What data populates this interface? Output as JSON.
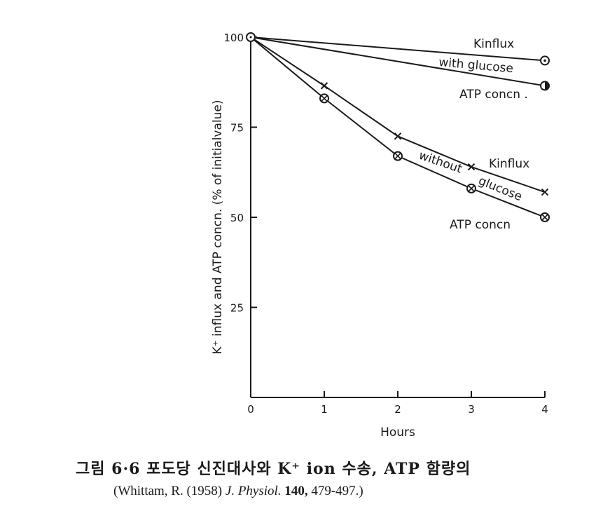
{
  "chart_data": {
    "type": "line",
    "xlabel": "Hours",
    "ylabel": "K⁺ influx and ATP concn. (% of initialvalue)",
    "x": [
      0,
      1,
      2,
      3,
      4
    ],
    "xlim": [
      0,
      4
    ],
    "ylim": [
      0,
      100
    ],
    "xticks": [
      "0",
      "1",
      "2",
      "3",
      "4"
    ],
    "yticks": [
      "100",
      "75",
      "50",
      "25"
    ],
    "grid": false,
    "series": [
      {
        "values": [
          100,
          93.5
        ],
        "x": [
          0,
          4
        ],
        "marker": "circle-dot"
      },
      {
        "values": [
          100,
          86.5
        ],
        "x": [
          0,
          4
        ],
        "marker": "half-filled-circle"
      },
      {
        "values": [
          100,
          86.5,
          72.5,
          64,
          57
        ],
        "x": [
          0,
          1,
          2,
          3,
          4
        ],
        "marker": "x"
      },
      {
        "values": [
          100,
          83,
          67,
          58,
          50
        ],
        "x": [
          0,
          1,
          2,
          3,
          4
        ],
        "marker": "circle-x"
      }
    ],
    "annotations": {
      "k_influx_glucose": "Kinflux",
      "with_glucose": "with glucose",
      "atp_glucose": "ATP concn .",
      "k_influx_noglucose": "Kinflux",
      "without": "without",
      "glucose": "glucose",
      "atp_noglucose": "ATP concn"
    }
  },
  "caption": {
    "line1": "그림 6·6  포도당  신진대사와  K⁺ ion  수송,  ATP  함량의",
    "line2_authors": "(Whittam, R. (1958) ",
    "line2_journal": "J. Physiol.",
    "line2_volume": " 140,",
    "line2_pages": " 479-497.)"
  }
}
